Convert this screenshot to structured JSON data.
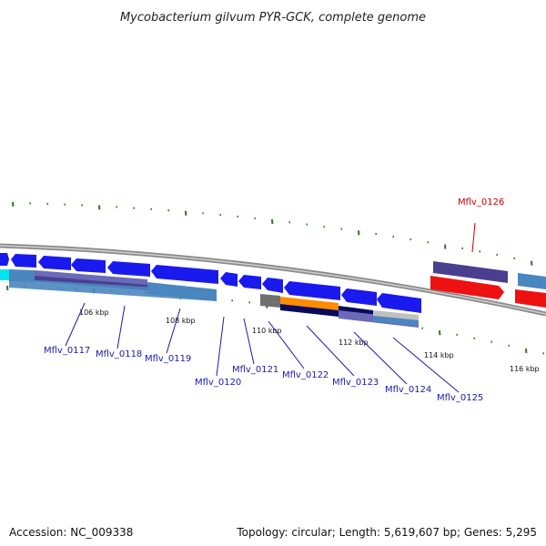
{
  "title": "Mycobacterium gilvum PYR-GCK, complete genome",
  "footer": {
    "accession": "Accession: NC_009338",
    "summary": "Topology: circular; Length: 5,619,607 bp; Genes: 5,295"
  },
  "colors": {
    "background": "#ffffff",
    "backbone": "#8a8a8a",
    "tick": "#2a7a1a",
    "label_blue": "#1a1aaa",
    "label_red": "#cc0000",
    "gene_blue": "#1a1aee",
    "gene_red": "#ee1111",
    "gene_purple": "#4a3f8f",
    "gene_steel": "#4a86c0",
    "gene_orange": "#ff8c00",
    "gene_navy": "#0a0a5a",
    "gene_gray": "#707070",
    "gene_cyan": "#00e5ee"
  },
  "scale_labels": [
    "106 kbp",
    "108 kbp",
    "110 kbp",
    "112 kbp",
    "114 kbp",
    "116 kbp"
  ],
  "gene_labels": [
    {
      "text": "Mflv_0117",
      "color": "blue"
    },
    {
      "text": "Mflv_0118",
      "color": "blue"
    },
    {
      "text": "Mflv_0119",
      "color": "blue"
    },
    {
      "text": "Mflv_0120",
      "color": "blue"
    },
    {
      "text": "Mflv_0121",
      "color": "blue"
    },
    {
      "text": "Mflv_0122",
      "color": "blue"
    },
    {
      "text": "Mflv_0123",
      "color": "blue"
    },
    {
      "text": "Mflv_0124",
      "color": "blue"
    },
    {
      "text": "Mflv_0125",
      "color": "blue"
    },
    {
      "text": "Mflv_0126",
      "color": "red"
    }
  ]
}
